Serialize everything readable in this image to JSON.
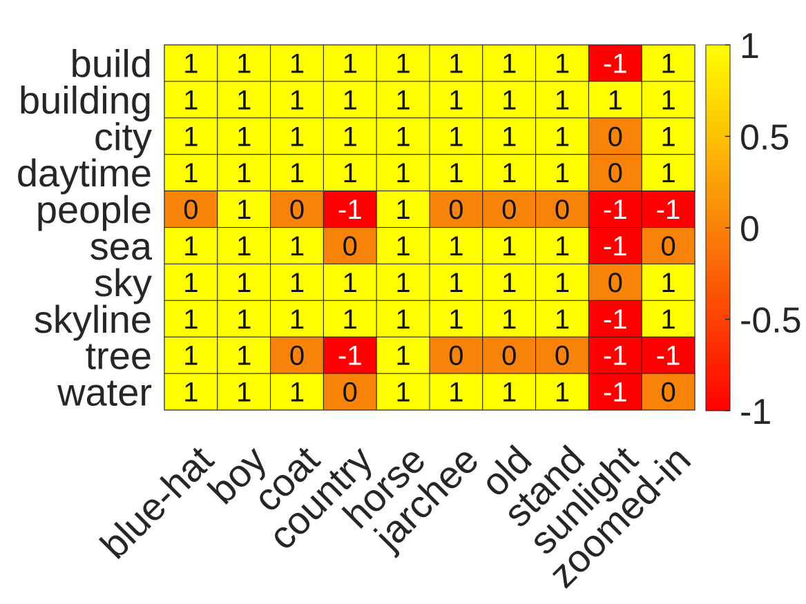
{
  "chart_data": {
    "type": "heatmap",
    "title": "",
    "xlabel": "",
    "ylabel": "",
    "rows": [
      "build",
      "building",
      "city",
      "daytime",
      "people",
      "sea",
      "sky",
      "skyline",
      "tree",
      "water"
    ],
    "columns": [
      "blue-hat",
      "boy",
      "coat",
      "country",
      "horse",
      "jarchee",
      "old",
      "stand",
      "sunlight",
      "zoomed-in"
    ],
    "values": [
      [
        1,
        1,
        1,
        1,
        1,
        1,
        1,
        1,
        -1,
        1
      ],
      [
        1,
        1,
        1,
        1,
        1,
        1,
        1,
        1,
        1,
        1
      ],
      [
        1,
        1,
        1,
        1,
        1,
        1,
        1,
        1,
        0,
        1
      ],
      [
        1,
        1,
        1,
        1,
        1,
        1,
        1,
        1,
        0,
        1
      ],
      [
        0,
        1,
        0,
        -1,
        1,
        0,
        0,
        0,
        -1,
        -1
      ],
      [
        1,
        1,
        1,
        0,
        1,
        1,
        1,
        1,
        -1,
        0
      ],
      [
        1,
        1,
        1,
        1,
        1,
        1,
        1,
        1,
        0,
        1
      ],
      [
        1,
        1,
        1,
        1,
        1,
        1,
        1,
        1,
        -1,
        1
      ],
      [
        1,
        1,
        0,
        -1,
        1,
        0,
        0,
        0,
        -1,
        -1
      ],
      [
        1,
        1,
        1,
        0,
        1,
        1,
        1,
        1,
        -1,
        0
      ]
    ],
    "colorbar": {
      "range": [
        -1,
        1
      ],
      "ticks": [
        1,
        0.5,
        0,
        -0.5,
        -1
      ],
      "tick_labels": [
        "1",
        "0.5",
        "0",
        "-0.5",
        "-1"
      ],
      "colors": {
        "1": "#ffff00",
        "0": "#f98208",
        "-1": "#ff0000"
      }
    }
  }
}
